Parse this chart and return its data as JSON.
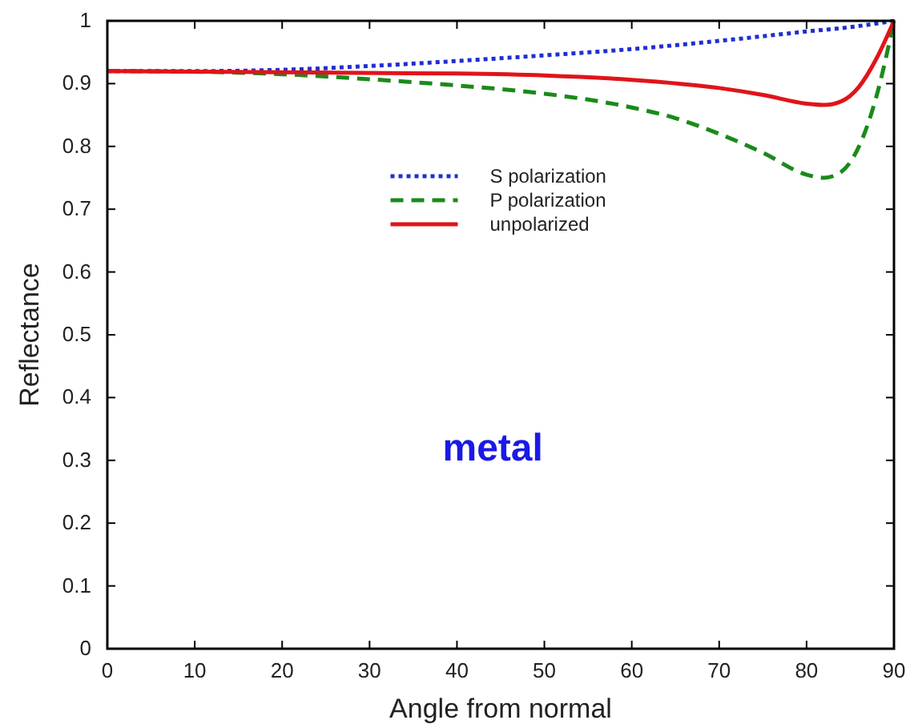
{
  "chart_data": {
    "type": "line",
    "xlabel": "Angle from normal",
    "ylabel": "Reflectance",
    "xlim": [
      0,
      90
    ],
    "ylim": [
      0,
      1
    ],
    "xticks": [
      0,
      10,
      20,
      30,
      40,
      50,
      60,
      70,
      80,
      90
    ],
    "yticks": [
      0,
      0.1,
      0.2,
      0.3,
      0.4,
      0.5,
      0.6,
      0.7,
      0.8,
      0.9,
      1
    ],
    "grid": false,
    "legend": "top",
    "annotations": [
      "metal"
    ],
    "series": [
      {
        "name": "S polarization",
        "color": "#1f2fd0",
        "line_style": "dotted",
        "x": [
          0,
          10,
          20,
          30,
          40,
          50,
          60,
          70,
          80,
          85,
          90
        ],
        "values": [
          0.92,
          0.92,
          0.922,
          0.928,
          0.936,
          0.945,
          0.955,
          0.968,
          0.983,
          0.99,
          1
        ]
      },
      {
        "name": "P polarization",
        "color": "#1a8a1a",
        "line_style": "dashed",
        "x": [
          0,
          10,
          20,
          30,
          40,
          50,
          60,
          65,
          70,
          75,
          80,
          82,
          84,
          86,
          88,
          90
        ],
        "values": [
          0.92,
          0.919,
          0.915,
          0.907,
          0.897,
          0.884,
          0.862,
          0.845,
          0.82,
          0.79,
          0.755,
          0.75,
          0.76,
          0.8,
          0.88,
          1
        ]
      },
      {
        "name": "unpolarized",
        "color": "#e0141a",
        "line_style": "solid",
        "x": [
          0,
          20,
          40,
          50,
          60,
          70,
          75,
          80,
          82,
          84,
          86,
          88,
          90
        ],
        "values": [
          0.92,
          0.918,
          0.916,
          0.913,
          0.906,
          0.893,
          0.882,
          0.868,
          0.866,
          0.872,
          0.895,
          0.94,
          1
        ]
      }
    ]
  }
}
